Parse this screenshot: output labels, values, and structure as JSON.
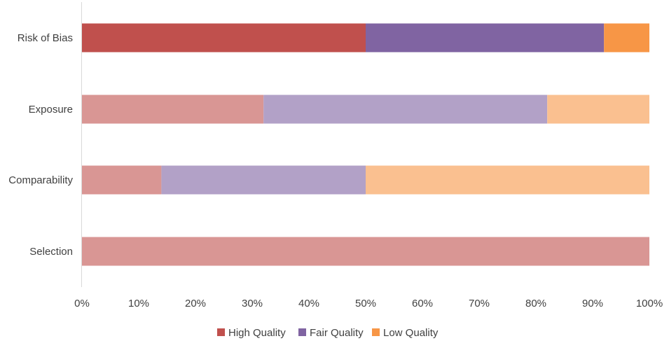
{
  "chart_data": {
    "type": "bar",
    "orientation": "horizontal",
    "stacked": true,
    "percent_stacked": true,
    "title": "",
    "xlabel": "",
    "ylabel": "",
    "xlim": [
      0,
      100
    ],
    "x_ticks": [
      "0%",
      "10%",
      "20%",
      "30%",
      "40%",
      "50%",
      "60%",
      "70%",
      "80%",
      "90%",
      "100%"
    ],
    "categories": [
      "Risk of Bias",
      "Exposure",
      "Comparability",
      "Selection"
    ],
    "series": [
      {
        "name": "High Quality",
        "values": [
          50,
          32,
          14,
          100
        ]
      },
      {
        "name": "Fair Quality",
        "values": [
          42,
          50,
          36,
          0
        ]
      },
      {
        "name": "Low Quality",
        "values": [
          8,
          18,
          50,
          0
        ]
      }
    ],
    "legend_position": "bottom",
    "grid": false,
    "colors": {
      "high_full": "#c0504d",
      "fair_full": "#8064a2",
      "low_full": "#f79646",
      "high_light": "#d99694",
      "fair_light": "#b2a1c7",
      "low_light": "#fac090"
    },
    "full_opacity_categories": [
      "Risk of Bias"
    ]
  }
}
